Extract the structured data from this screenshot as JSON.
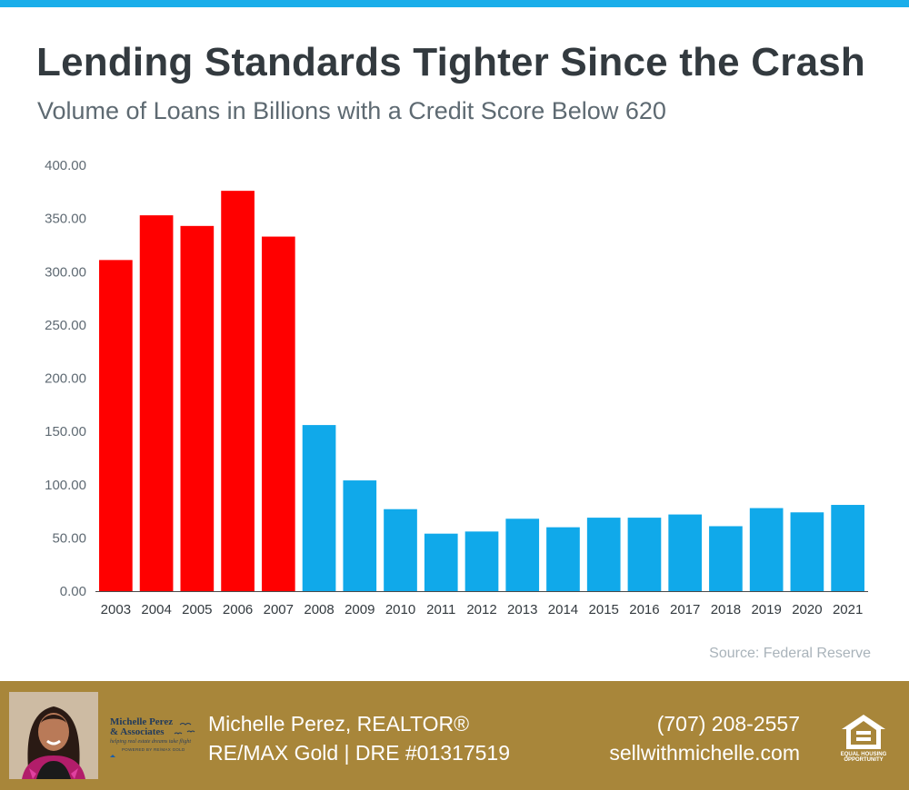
{
  "title": "Lending Standards Tighter Since the Crash",
  "subtitle": "Volume of Loans in Billions with a Credit Score Below 620",
  "source": "Source: Federal Reserve",
  "colors": {
    "top_bar": "#1aaeea",
    "bar_red": "#ff0000",
    "bar_blue": "#10a9ea",
    "footer_bg": "#a8863a"
  },
  "chart_data": {
    "type": "bar",
    "title": "Lending Standards Tighter Since the Crash",
    "subtitle": "Volume of Loans in Billions with a Credit Score Below 620",
    "xlabel": "",
    "ylabel": "",
    "ylim": [
      0,
      400
    ],
    "yticks": [
      "0.00",
      "50.00",
      "100.00",
      "150.00",
      "200.00",
      "250.00",
      "300.00",
      "350.00",
      "400.00"
    ],
    "grid": false,
    "categories": [
      "2003",
      "2004",
      "2005",
      "2006",
      "2007",
      "2008",
      "2009",
      "2010",
      "2011",
      "2012",
      "2013",
      "2014",
      "2015",
      "2016",
      "2017",
      "2018",
      "2019",
      "2020",
      "2021"
    ],
    "values": [
      311,
      353,
      343,
      376,
      333,
      156,
      104,
      77,
      54,
      56,
      68,
      60,
      69,
      69,
      72,
      61,
      78,
      74,
      81
    ],
    "colors": [
      "#ff0000",
      "#ff0000",
      "#ff0000",
      "#ff0000",
      "#ff0000",
      "#10a9ea",
      "#10a9ea",
      "#10a9ea",
      "#10a9ea",
      "#10a9ea",
      "#10a9ea",
      "#10a9ea",
      "#10a9ea",
      "#10a9ea",
      "#10a9ea",
      "#10a9ea",
      "#10a9ea",
      "#10a9ea",
      "#10a9ea"
    ]
  },
  "footer": {
    "photo_icon": "agent-portrait",
    "logo_name_line1": "Michelle Perez",
    "logo_name_line2": "& Associates",
    "logo_tagline": "helping real estate dreams take flight",
    "logo_sub": "POWERED BY RE/MAX GOLD",
    "agent_name": "Michelle Perez, REALTOR®",
    "agent_brokerage": "RE/MAX Gold | DRE #01317519",
    "phone": "(707) 208-2557",
    "website": "sellwithmichelle.com",
    "equal_housing_line1": "EQUAL HOUSING",
    "equal_housing_line2": "OPPORTUNITY"
  }
}
